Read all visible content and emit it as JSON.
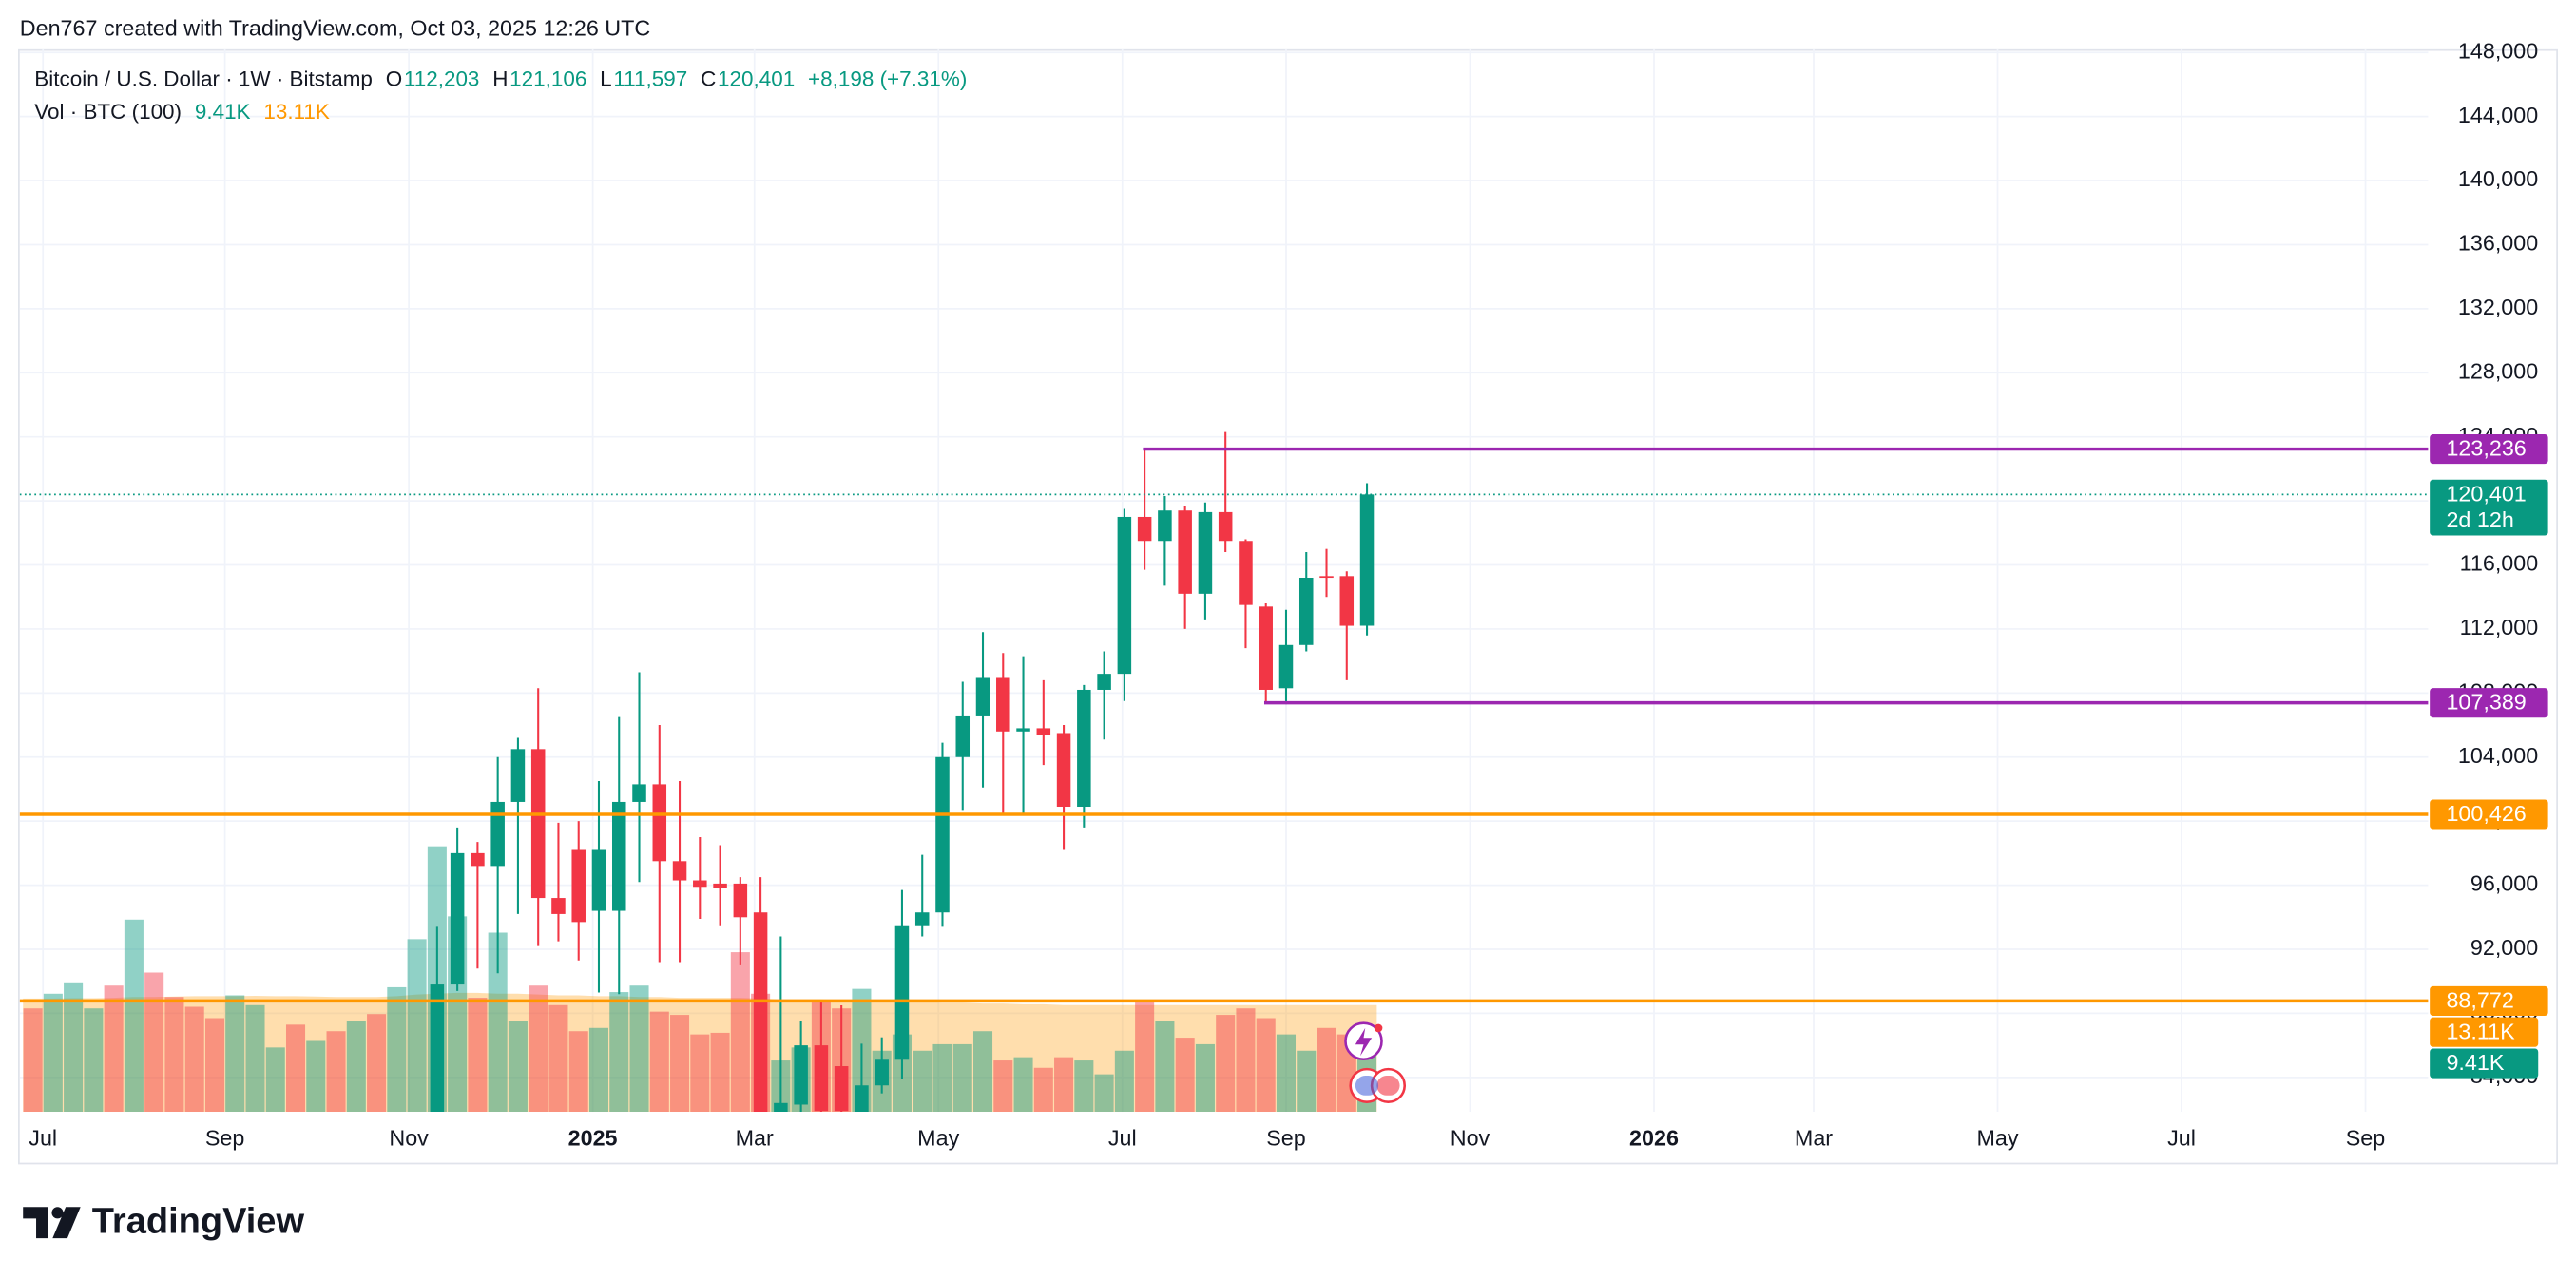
{
  "header": {
    "attribution": "Den767 created with TradingView.com, Oct 03, 2025 12:26 UTC",
    "brand": "TradingView"
  },
  "chart_data": {
    "type": "candlestick",
    "title": "Bitcoin / U.S. Dollar · 1W · Bitstamp",
    "legend": [
      {
        "key": "O",
        "value": "112,203"
      },
      {
        "key": "H",
        "value": "121,106"
      },
      {
        "key": "L",
        "value": "111,597"
      },
      {
        "key": "C",
        "value": "120,401"
      }
    ],
    "change": "+8,198 (+7.31%)",
    "colors": {
      "up": "#089981",
      "down": "#f23645"
    },
    "open": [
      null,
      null,
      null,
      null,
      null,
      null,
      null,
      null,
      null,
      null,
      null,
      null,
      null,
      null,
      null,
      null,
      null,
      null,
      null,
      null,
      80400,
      89800,
      98000,
      97200,
      101200,
      104500,
      95200,
      98200,
      94400,
      94400,
      101200,
      102300,
      97500,
      96300,
      96100,
      96100,
      94300,
      81800,
      82300,
      86000,
      84700,
      81800,
      83500,
      85100,
      93500,
      94300,
      104000,
      106600,
      109000,
      105600,
      105800,
      105500,
      100900,
      108200,
      109200,
      119000,
      117500,
      119400,
      114200,
      119300,
      117500,
      113400,
      108300,
      111000,
      115300,
      115300,
      112203
    ],
    "high": [
      null,
      null,
      null,
      null,
      null,
      null,
      null,
      null,
      null,
      null,
      null,
      null,
      null,
      null,
      null,
      null,
      null,
      null,
      null,
      null,
      93400,
      99600,
      98700,
      104000,
      105200,
      108300,
      99900,
      100000,
      102500,
      106500,
      109300,
      106000,
      102500,
      99000,
      98500,
      96500,
      96500,
      92800,
      87500,
      88800,
      88500,
      86100,
      86500,
      95700,
      97900,
      104900,
      108700,
      111800,
      110500,
      110300,
      108800,
      106000,
      108500,
      110600,
      119500,
      123200,
      120300,
      119700,
      119900,
      124300,
      117600,
      113600,
      113200,
      116800,
      117000,
      115600,
      121106
    ],
    "low": [
      null,
      null,
      null,
      null,
      null,
      null,
      null,
      null,
      null,
      null,
      null,
      null,
      null,
      null,
      null,
      null,
      null,
      null,
      null,
      null,
      80200,
      89400,
      90800,
      90500,
      94200,
      92200,
      92500,
      91300,
      89300,
      89200,
      96200,
      91200,
      91200,
      93900,
      93500,
      91000,
      78200,
      76600,
      81000,
      81200,
      74500,
      78900,
      83000,
      83900,
      92800,
      93400,
      100700,
      102100,
      100500,
      100400,
      103500,
      98200,
      99600,
      105100,
      107500,
      115700,
      114700,
      112000,
      112600,
      116800,
      110800,
      107400,
      107300,
      110600,
      114000,
      108800,
      111597
    ],
    "close": [
      null,
      null,
      null,
      null,
      null,
      null,
      null,
      null,
      null,
      null,
      null,
      null,
      null,
      null,
      null,
      null,
      null,
      null,
      null,
      null,
      89800,
      98000,
      97200,
      101200,
      104500,
      95200,
      94200,
      93700,
      98200,
      101200,
      102300,
      97500,
      96300,
      95900,
      95800,
      94000,
      80500,
      82400,
      86000,
      81900,
      81900,
      83500,
      85100,
      93500,
      94300,
      104000,
      106600,
      109000,
      105600,
      105800,
      105400,
      100900,
      108200,
      109200,
      119000,
      117500,
      119400,
      114200,
      119300,
      117500,
      113500,
      108200,
      111000,
      115200,
      115200,
      112200,
      120401
    ],
    "close_label": "120,401",
    "countdown": "2d 12h",
    "volume": {
      "name": "Vol · BTC (100)",
      "values": [
        12700,
        14500,
        15900,
        12700,
        15500,
        23600,
        17100,
        14100,
        12900,
        11500,
        14300,
        13100,
        7900,
        10700,
        8700,
        9900,
        11100,
        12000,
        15300,
        21200,
        32600,
        24000,
        14000,
        22000,
        11100,
        15500,
        13100,
        9900,
        10300,
        14700,
        15500,
        12300,
        11900,
        9500,
        9700,
        19600,
        14500,
        6300,
        7900,
        13500,
        12700,
        15100,
        7500,
        9500,
        7500,
        8300,
        8300,
        9900,
        6300,
        6700,
        5400,
        6700,
        6300,
        4600,
        7500,
        13500,
        11100,
        9100,
        8300,
        11900,
        12700,
        11500,
        9500,
        7500,
        10300,
        9500,
        9410
      ],
      "colors": [
        "#f23645",
        "#089981",
        "#089981",
        "#089981",
        "#f23645",
        "#089981",
        "#f23645",
        "#f23645",
        "#f23645",
        "#f23645",
        "#089981",
        "#089981",
        "#089981",
        "#f23645",
        "#089981",
        "#f23645",
        "#089981",
        "#f23645",
        "#089981",
        "#089981",
        "#089981",
        "#089981",
        "#f23645",
        "#089981",
        "#089981",
        "#f23645",
        "#f23645",
        "#f23645",
        "#089981",
        "#089981",
        "#089981",
        "#f23645",
        "#f23645",
        "#f23645",
        "#f23645",
        "#f23645",
        "#f23645",
        "#089981",
        "#089981",
        "#f23645",
        "#f23645",
        "#089981",
        "#089981",
        "#089981",
        "#089981",
        "#089981",
        "#089981",
        "#089981",
        "#f23645",
        "#089981",
        "#f23645",
        "#f23645",
        "#089981",
        "#089981",
        "#089981",
        "#f23645",
        "#089981",
        "#f23645",
        "#089981",
        "#f23645",
        "#f23645",
        "#f23645",
        "#089981",
        "#089981",
        "#f23645",
        "#f23645",
        "#089981"
      ],
      "value_label": "9.41K",
      "ma": {
        "color": "#ff9800",
        "value_label": "13.11K",
        "values": [
          13900,
          13900,
          13950,
          13950,
          14000,
          14100,
          14100,
          14150,
          14200,
          14200,
          14200,
          14250,
          14200,
          14200,
          14150,
          14100,
          14100,
          14100,
          14200,
          14400,
          14500,
          14600,
          14600,
          14500,
          14500,
          14400,
          14300,
          14300,
          14200,
          14200,
          14100,
          14100,
          14000,
          14000,
          14000,
          14000,
          13900,
          13800,
          13800,
          13800,
          13700,
          13600,
          13600,
          13500,
          13500,
          13400,
          13400,
          13300,
          13300,
          13200,
          13200,
          13100,
          13100,
          13100,
          13100,
          13100,
          13100,
          13100,
          13100,
          13100,
          13100,
          13100,
          13100,
          13100,
          13100,
          13100,
          13110
        ]
      }
    },
    "levels": [
      {
        "value": 123236,
        "label": "123,236",
        "color": "#9c27b0",
        "from": 55
      },
      {
        "value": 107389,
        "label": "107,389",
        "color": "#9c27b0",
        "from": 61
      },
      {
        "value": 100426,
        "label": "100,426",
        "color": "#ff9800"
      },
      {
        "value": 88772,
        "label": "88,772",
        "color": "#ff9800"
      }
    ],
    "xlim": [
      -0.65,
      118.5
    ],
    "xticks": [
      {
        "value": 0.5,
        "label": "Jul"
      },
      {
        "value": 9.5,
        "label": "Sep"
      },
      {
        "value": 18.6,
        "label": "Nov"
      },
      {
        "value": 27.7,
        "label": "2025"
      },
      {
        "value": 35.7,
        "label": "Mar"
      },
      {
        "value": 44.8,
        "label": "May"
      },
      {
        "value": 53.9,
        "label": "Jul"
      },
      {
        "value": 62,
        "label": "Sep"
      },
      {
        "value": 71.1,
        "label": "Nov"
      },
      {
        "value": 80.2,
        "label": "2026"
      },
      {
        "value": 88.1,
        "label": "Mar"
      },
      {
        "value": 97.2,
        "label": "May"
      },
      {
        "value": 106.3,
        "label": "Jul"
      },
      {
        "value": 115.4,
        "label": "Sep"
      }
    ],
    "ylim": [
      81850,
      148200
    ],
    "yticks": [
      {
        "value": 84000,
        "label": "84,000"
      },
      {
        "value": 88000,
        "label": "88,000"
      },
      {
        "value": 92000,
        "label": "92,000"
      },
      {
        "value": 96000,
        "label": "96,000"
      },
      {
        "value": 100000,
        "label": "100,000"
      },
      {
        "value": 104000,
        "label": "104,000"
      },
      {
        "value": 108000,
        "label": "108,000"
      },
      {
        "value": 112000,
        "label": "112,000"
      },
      {
        "value": 116000,
        "label": "116,000"
      },
      {
        "value": 120000,
        "label": "120,000"
      },
      {
        "value": 124000,
        "label": "124,000"
      },
      {
        "value": 128000,
        "label": "128,000"
      },
      {
        "value": 132000,
        "label": "132,000"
      },
      {
        "value": 136000,
        "label": "136,000"
      },
      {
        "value": 140000,
        "label": "140,000"
      },
      {
        "value": 144000,
        "label": "144,000"
      },
      {
        "value": 148000,
        "label": "148,000"
      }
    ],
    "y2lim": [
      0,
      34000
    ],
    "grid": true
  }
}
